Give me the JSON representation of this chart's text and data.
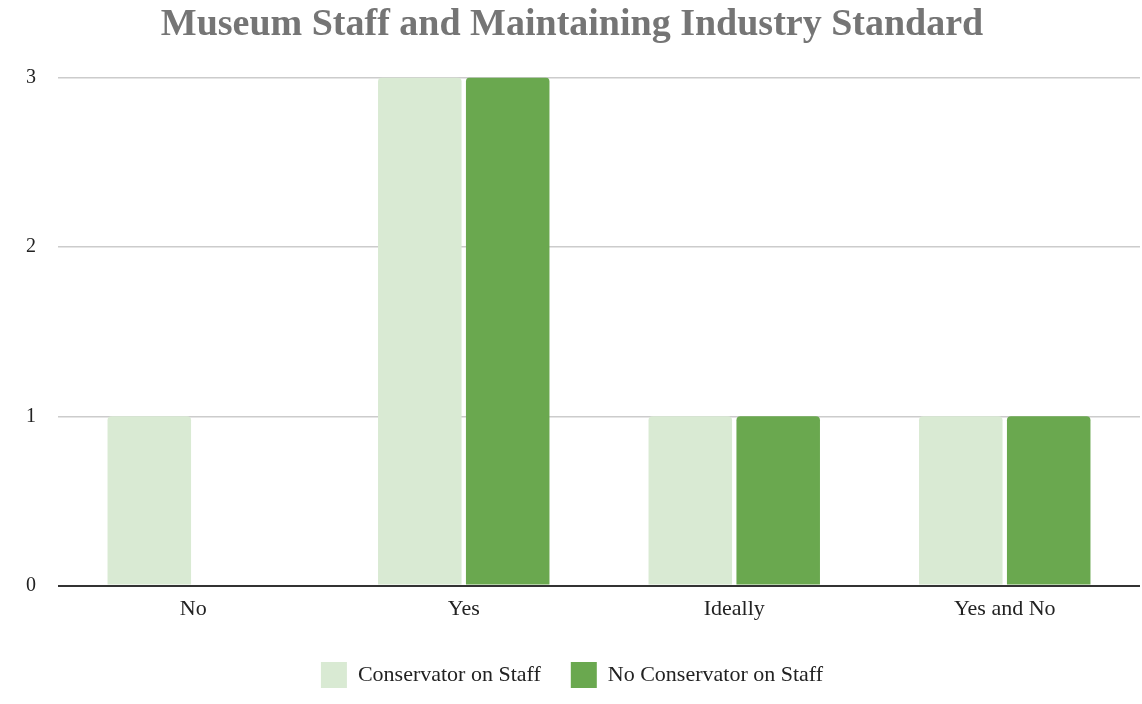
{
  "chart_data": {
    "type": "bar",
    "title": "Museum Staff and Maintaining Industry Standard",
    "categories": [
      "No",
      "Yes",
      "Ideally",
      "Yes and No"
    ],
    "series": [
      {
        "name": "Conservator on Staff",
        "color": "#d9ead3",
        "values": [
          1,
          3,
          1,
          1
        ]
      },
      {
        "name": "No Conservator on Staff",
        "color": "#6aa84f",
        "values": [
          0,
          3,
          1,
          1
        ]
      }
    ],
    "ylim": [
      0,
      3
    ],
    "yticks": [
      0,
      1,
      2,
      3
    ],
    "grid": "y",
    "legend": "bottom"
  }
}
